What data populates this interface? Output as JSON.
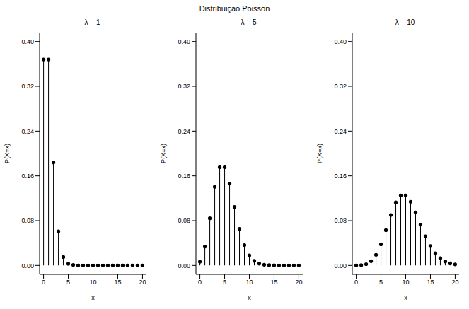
{
  "title": "Distribuição Poisson",
  "chart_data": [
    {
      "type": "stem",
      "title": "λ = 1",
      "x_label": "x",
      "y_label": "P(X=x)",
      "color": "#000000",
      "marker": "circle",
      "x": [
        0,
        1,
        2,
        3,
        4,
        5,
        6,
        7,
        8,
        9,
        10,
        11,
        12,
        13,
        14,
        15,
        16,
        17,
        18,
        19,
        20
      ],
      "values": [
        0.368,
        0.368,
        0.184,
        0.061,
        0.015,
        0.003,
        0.001,
        0,
        0,
        0,
        0,
        0,
        0,
        0,
        0,
        0,
        0,
        0,
        0,
        0,
        0
      ],
      "xlim": [
        -0.8,
        20.8
      ],
      "xticks": [
        0,
        5,
        10,
        15,
        20
      ],
      "ylim": [
        -0.016,
        0.416
      ],
      "yticks": [
        {
          "value": 0,
          "label": "0.00"
        },
        {
          "value": 0.08,
          "label": "0.08"
        },
        {
          "value": 0.16,
          "label": "0.16"
        },
        {
          "value": 0.24,
          "label": "0.24"
        },
        {
          "value": 0.32,
          "label": "0.32"
        },
        {
          "value": 0.4,
          "label": "0.40"
        }
      ]
    },
    {
      "type": "stem",
      "title": "λ = 5",
      "x_label": "x",
      "y_label": "P(X=x)",
      "color": "#000000",
      "marker": "circle",
      "x": [
        0,
        1,
        2,
        3,
        4,
        5,
        6,
        7,
        8,
        9,
        10,
        11,
        12,
        13,
        14,
        15,
        16,
        17,
        18,
        19,
        20
      ],
      "values": [
        0.0067,
        0.0337,
        0.0842,
        0.1404,
        0.1755,
        0.1755,
        0.1462,
        0.1044,
        0.0653,
        0.0363,
        0.0181,
        0.0082,
        0.0034,
        0.0013,
        0.0005,
        0.0002,
        0,
        0,
        0,
        0,
        0
      ],
      "xlim": [
        -0.8,
        20.8
      ],
      "xticks": [
        0,
        5,
        10,
        15,
        20
      ],
      "ylim": [
        -0.016,
        0.416
      ],
      "yticks": [
        {
          "value": 0,
          "label": "0.00"
        },
        {
          "value": 0.08,
          "label": "0.08"
        },
        {
          "value": 0.16,
          "label": "0.16"
        },
        {
          "value": 0.24,
          "label": "0.24"
        },
        {
          "value": 0.32,
          "label": "0.32"
        },
        {
          "value": 0.4,
          "label": "0.40"
        }
      ]
    },
    {
      "type": "stem",
      "title": "λ = 10",
      "x_label": "x",
      "y_label": "P(X=x)",
      "color": "#000000",
      "marker": "circle",
      "x": [
        0,
        1,
        2,
        3,
        4,
        5,
        6,
        7,
        8,
        9,
        10,
        11,
        12,
        13,
        14,
        15,
        16,
        17,
        18,
        19,
        20
      ],
      "values": [
        0,
        0.0005,
        0.0023,
        0.0076,
        0.0189,
        0.0378,
        0.0631,
        0.0901,
        0.1126,
        0.1251,
        0.1251,
        0.1137,
        0.0948,
        0.0729,
        0.0521,
        0.0347,
        0.0217,
        0.0128,
        0.0071,
        0.0037,
        0.0019
      ],
      "xlim": [
        -0.8,
        20.8
      ],
      "xticks": [
        0,
        5,
        10,
        15,
        20
      ],
      "ylim": [
        -0.016,
        0.416
      ],
      "yticks": [
        {
          "value": 0,
          "label": "0.00"
        },
        {
          "value": 0.08,
          "label": "0.08"
        },
        {
          "value": 0.16,
          "label": "0.16"
        },
        {
          "value": 0.24,
          "label": "0.24"
        },
        {
          "value": 0.32,
          "label": "0.32"
        },
        {
          "value": 0.4,
          "label": "0.40"
        }
      ]
    }
  ]
}
